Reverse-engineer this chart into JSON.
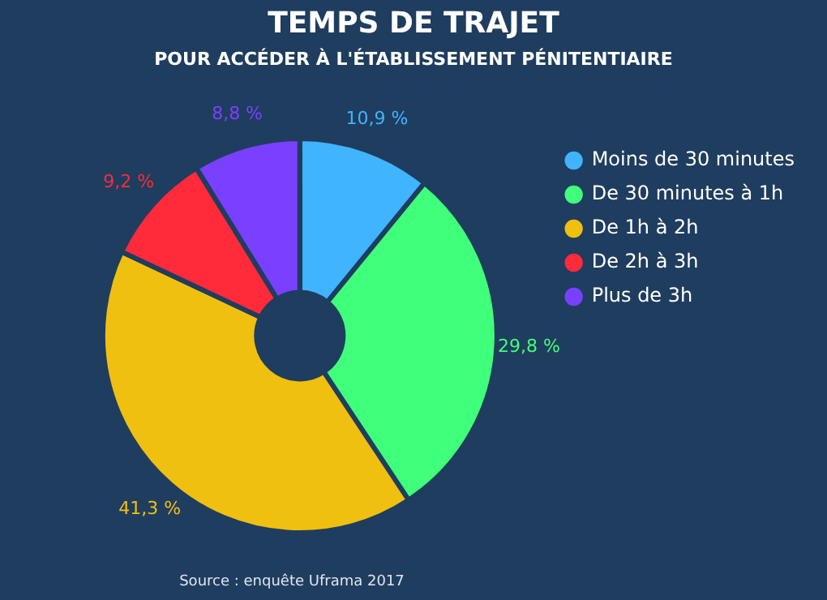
{
  "chart_data": {
    "type": "donut",
    "title": "TEMPS DE TRAJET",
    "subtitle": "POUR ACCÉDER À L'ÉTABLISSEMENT PÉNITENTIAIRE",
    "categories": [
      "Moins de 30 minutes",
      "De 30 minutes à 1h",
      "De 1h à 2h",
      "De 2h à 3h",
      "Plus de 3h"
    ],
    "values": [
      10.9,
      29.8,
      41.3,
      9.2,
      8.8
    ],
    "colors": [
      "#40b4ff",
      "#40ff7a",
      "#f0c010",
      "#ff2a3a",
      "#7a40ff"
    ],
    "value_labels": [
      "10,9 %",
      "29,8 %",
      "41,3 %",
      "9,2 %",
      "8,8 %"
    ],
    "legend": "top right",
    "annotations": [
      "Source : enquête Uframa 2017"
    ]
  }
}
